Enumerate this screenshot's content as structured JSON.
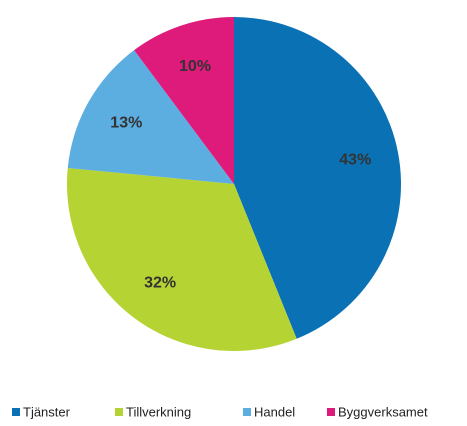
{
  "chart_data": {
    "type": "pie",
    "categories": [
      "Tjänster",
      "Tillverkning",
      "Handel",
      "Byggverksamet"
    ],
    "values": [
      43,
      32,
      13,
      10
    ],
    "value_labels": [
      "43%",
      "32%",
      "13%",
      "10%"
    ],
    "colors": [
      "#0a72b4",
      "#b6d334",
      "#5cade0",
      "#de1a7b"
    ],
    "legend": "bottom"
  }
}
